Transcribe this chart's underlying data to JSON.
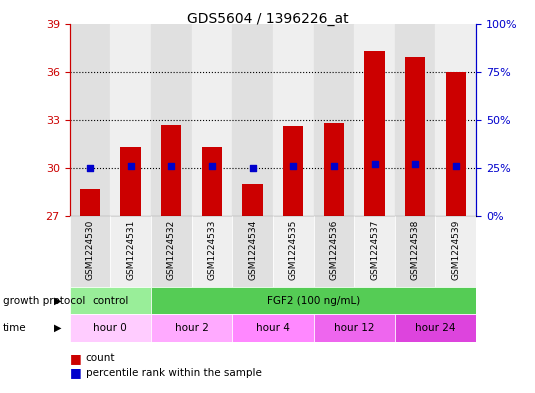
{
  "title": "GDS5604 / 1396226_at",
  "samples": [
    "GSM1224530",
    "GSM1224531",
    "GSM1224532",
    "GSM1224533",
    "GSM1224534",
    "GSM1224535",
    "GSM1224536",
    "GSM1224537",
    "GSM1224538",
    "GSM1224539"
  ],
  "counts": [
    28.7,
    31.3,
    32.7,
    31.3,
    29.0,
    32.6,
    32.8,
    37.3,
    36.9,
    36.0
  ],
  "percentiles": [
    25,
    26,
    26,
    26,
    25,
    26,
    26,
    27,
    27,
    26
  ],
  "ylim_left": [
    27,
    39
  ],
  "ylim_right": [
    0,
    100
  ],
  "yticks_left": [
    27,
    30,
    33,
    36,
    39
  ],
  "yticks_right": [
    0,
    25,
    50,
    75,
    100
  ],
  "bar_color": "#cc0000",
  "dot_color": "#0000cc",
  "bar_width": 0.5,
  "growth_protocol_labels": [
    {
      "label": "control",
      "start": 0,
      "end": 2,
      "color": "#99ee99"
    },
    {
      "label": "FGF2 (100 ng/mL)",
      "start": 2,
      "end": 10,
      "color": "#55cc55"
    }
  ],
  "time_labels": [
    {
      "label": "hour 0",
      "start": 0,
      "end": 2,
      "color": "#ffccff"
    },
    {
      "label": "hour 2",
      "start": 2,
      "end": 4,
      "color": "#ffaaff"
    },
    {
      "label": "hour 4",
      "start": 4,
      "end": 6,
      "color": "#ff88ff"
    },
    {
      "label": "hour 12",
      "start": 6,
      "end": 8,
      "color": "#ee66ee"
    },
    {
      "label": "hour 24",
      "start": 8,
      "end": 10,
      "color": "#dd44dd"
    }
  ],
  "legend_count_label": "count",
  "legend_percentile_label": "percentile rank within the sample",
  "left_axis_color": "#cc0000",
  "right_axis_color": "#0000cc",
  "col_bg_even": "#e0e0e0",
  "col_bg_odd": "#efefef"
}
